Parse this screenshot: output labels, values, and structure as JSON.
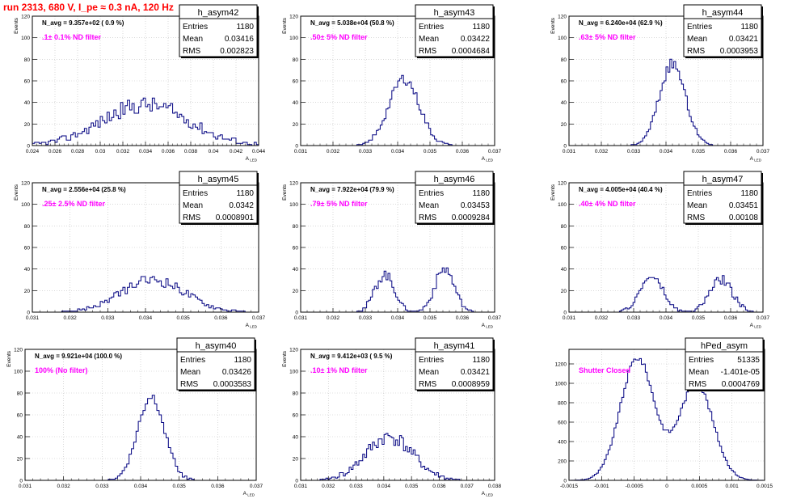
{
  "run_title": "run 2313,   680 V, I_pe ≈ 0.3 nA, 120 Hz",
  "colors": {
    "hist": "#000080",
    "grid": "#c0c0c0",
    "annotation": "#ff00ff",
    "title": "#ff0000"
  },
  "chart_data": [
    {
      "type": "bar",
      "name": "h_asym42",
      "ylabel": "Events",
      "xlabel": "A_LED",
      "navg": "N_avg = 9.357e+02 ( 0.9 %)",
      "filter": ".1± 0.1% ND filter",
      "stats": {
        "Entries": "1180",
        "Mean": "0.03416",
        "RMS": "0.002823"
      },
      "xlim": [
        0.024,
        0.044
      ],
      "ylim": [
        0,
        120
      ],
      "xticks": [
        "0.024",
        "0.026",
        "0.028",
        "0.03",
        "0.032",
        "0.034",
        "0.036",
        "0.038",
        "0.04",
        "0.042",
        "0.044"
      ],
      "yticks": [
        "0",
        "20",
        "40",
        "60",
        "80",
        "100",
        "120"
      ],
      "shape": {
        "peaks": [
          [
            0.034,
            0.0038,
            38
          ]
        ],
        "noise": 8,
        "seed": 42
      }
    },
    {
      "type": "bar",
      "name": "h_asym43",
      "ylabel": "Events",
      "xlabel": "A_LED",
      "navg": "N_avg = 5.038e+04 (50.8 %)",
      "filter": ".50± 5% ND filter",
      "stats": {
        "Entries": "1180",
        "Mean": "0.03422",
        "RMS": "0.0004684"
      },
      "xlim": [
        0.031,
        0.037
      ],
      "ylim": [
        0,
        120
      ],
      "xticks": [
        "0.031",
        "0.032",
        "0.033",
        "0.034",
        "0.035",
        "0.036",
        "0.037"
      ],
      "yticks": [
        "0",
        "20",
        "40",
        "60",
        "80",
        "100",
        "120"
      ],
      "shape": {
        "peaks": [
          [
            0.0342,
            0.00047,
            62
          ]
        ],
        "noise": 5,
        "seed": 43
      }
    },
    {
      "type": "bar",
      "name": "h_asym44",
      "ylabel": "Events",
      "xlabel": "A_LED",
      "navg": "N_avg = 6.240e+04 (62.9 %)",
      "filter": ".63± 5% ND filter",
      "stats": {
        "Entries": "1180",
        "Mean": "0.03421",
        "RMS": "0.0003953"
      },
      "xlim": [
        0.031,
        0.037
      ],
      "ylim": [
        0,
        120
      ],
      "xticks": [
        "0.031",
        "0.032",
        "0.033",
        "0.034",
        "0.035",
        "0.036",
        "0.037"
      ],
      "yticks": [
        "0",
        "20",
        "40",
        "60",
        "80",
        "100",
        "120"
      ],
      "shape": {
        "peaks": [
          [
            0.0342,
            0.0004,
            76
          ]
        ],
        "noise": 5,
        "seed": 44
      }
    },
    {
      "type": "bar",
      "name": "h_asym45",
      "ylabel": "Events",
      "xlabel": "A_LED",
      "navg": "N_avg = 2.556e+04 (25.8 %)",
      "filter": ".25± 2.5% ND filter",
      "stats": {
        "Entries": "1180",
        "Mean": "0.0342",
        "RMS": "0.0008901"
      },
      "xlim": [
        0.031,
        0.037
      ],
      "ylim": [
        0,
        120
      ],
      "xticks": [
        "0.031",
        "0.032",
        "0.033",
        "0.034",
        "0.035",
        "0.036",
        "0.037"
      ],
      "yticks": [
        "0",
        "20",
        "40",
        "60",
        "80",
        "100",
        "120"
      ],
      "shape": {
        "peaks": [
          [
            0.0342,
            0.00085,
            30
          ]
        ],
        "noise": 5,
        "seed": 45
      }
    },
    {
      "type": "bar",
      "name": "h_asym46",
      "ylabel": "Events",
      "xlabel": "A_LED",
      "navg": "N_avg = 7.922e+04 (79.9 %)",
      "filter": ".79± 5% ND filter",
      "stats": {
        "Entries": "1180",
        "Mean": "0.03453",
        "RMS": "0.0009284"
      },
      "xlim": [
        0.031,
        0.037
      ],
      "ylim": [
        0,
        120
      ],
      "xticks": [
        "0.031",
        "0.032",
        "0.033",
        "0.034",
        "0.035",
        "0.036",
        "0.037"
      ],
      "yticks": [
        "0",
        "20",
        "40",
        "60",
        "80",
        "100",
        "120"
      ],
      "shape": {
        "peaks": [
          [
            0.0336,
            0.0003,
            35
          ],
          [
            0.03545,
            0.0003,
            40
          ]
        ],
        "noise": 5,
        "seed": 46
      }
    },
    {
      "type": "bar",
      "name": "h_asym47",
      "ylabel": "Events",
      "xlabel": "A_LED",
      "navg": "N_avg = 4.005e+04 (40.4 %)",
      "filter": ".40± 4% ND filter",
      "stats": {
        "Entries": "1180",
        "Mean": "0.03451",
        "RMS": "0.00108"
      },
      "xlim": [
        0.031,
        0.037
      ],
      "ylim": [
        0,
        120
      ],
      "xticks": [
        "0.031",
        "0.032",
        "0.033",
        "0.034",
        "0.035",
        "0.036",
        "0.037"
      ],
      "yticks": [
        "0",
        "20",
        "40",
        "60",
        "80",
        "100",
        "120"
      ],
      "shape": {
        "peaks": [
          [
            0.03355,
            0.00035,
            33
          ],
          [
            0.0357,
            0.00035,
            30
          ]
        ],
        "noise": 5,
        "seed": 47
      }
    },
    {
      "type": "bar",
      "name": "h_asym40",
      "ylabel": "Events",
      "xlabel": "A_LED",
      "navg": "N_avg = 9.921e+04 (100.0 %)",
      "filter": "100% (No filter)",
      "stats": {
        "Entries": "1180",
        "Mean": "0.03426",
        "RMS": "0.0003583"
      },
      "xlim": [
        0.031,
        0.037
      ],
      "ylim": [
        0,
        120
      ],
      "xticks": [
        "0.031",
        "0.032",
        "0.033",
        "0.034",
        "0.035",
        "0.036",
        "0.037"
      ],
      "yticks": [
        "0",
        "20",
        "40",
        "60",
        "80",
        "100",
        "120"
      ],
      "shape": {
        "peaks": [
          [
            0.03428,
            0.00035,
            77
          ]
        ],
        "noise": 5,
        "seed": 40
      }
    },
    {
      "type": "bar",
      "name": "h_asym41",
      "ylabel": "Events",
      "xlabel": "A_LED",
      "navg": "N_avg = 9.412e+03 ( 9.5 %)",
      "filter": ".10± 1% ND filter",
      "stats": {
        "Entries": "1180",
        "Mean": "0.03421",
        "RMS": "0.0008959"
      },
      "xlim": [
        0.031,
        0.038
      ],
      "ylim": [
        0,
        120
      ],
      "xticks": [
        "0.031",
        "0.032",
        "0.033",
        "0.034",
        "0.035",
        "0.036",
        "0.037",
        "0.038"
      ],
      "yticks": [
        "0",
        "20",
        "40",
        "60",
        "80",
        "100",
        "120"
      ],
      "shape": {
        "peaks": [
          [
            0.0342,
            0.00085,
            40
          ]
        ],
        "noise": 7,
        "seed": 41
      }
    },
    {
      "type": "bar",
      "name": "hPed_asym",
      "ylabel": "",
      "xlabel": "",
      "navg": "",
      "filter": "Shutter Closed",
      "stats": {
        "Entries": "51335",
        "Mean": "-1.401e-05",
        "RMS": "0.0004769"
      },
      "xlim": [
        -0.0015,
        0.0015
      ],
      "ylim": [
        0,
        1350
      ],
      "xticks": [
        "-0.0015",
        "-0.001",
        "-0.0005",
        "0",
        "0.0005",
        "0.001",
        "0.0015"
      ],
      "yticks": [
        "0",
        "200",
        "400",
        "600",
        "800",
        "1000",
        "1200"
      ],
      "shape": {
        "peaks": [
          [
            -0.00045,
            0.00026,
            1260
          ],
          [
            0.00045,
            0.00026,
            1000
          ]
        ],
        "noise": 30,
        "seed": 9
      }
    }
  ]
}
